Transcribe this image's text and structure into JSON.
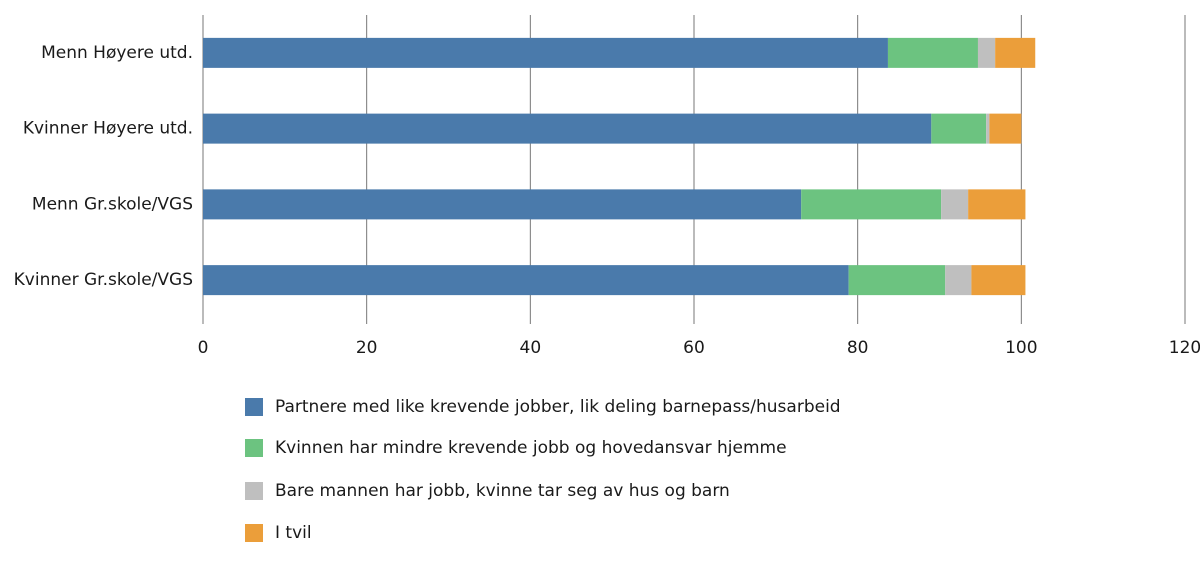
{
  "chart_data": {
    "type": "stacked-barh",
    "categories": [
      "Menn Høyere utd.",
      "Kvinner Høyere utd.",
      "Menn Gr.skole/VGS",
      "Kvinner Gr.skole/VGS"
    ],
    "series": [
      {
        "name": "Partnere med like krevende jobber, lik deling barnepass/husarbeid",
        "color": "#4a7aab",
        "values": [
          83.7,
          89.0,
          73.1,
          78.9
        ]
      },
      {
        "name": "Kvinnen har mindre krevende jobb og hovedansvar hjemme",
        "color": "#6cc380",
        "values": [
          11.0,
          6.7,
          17.1,
          11.8
        ]
      },
      {
        "name": "Bare mannen har jobb, kvinne tar seg av hus og barn",
        "color": "#bfbfbf",
        "values": [
          2.1,
          0.4,
          3.3,
          3.2
        ]
      },
      {
        "name": "I tvil",
        "color": "#eb9e3a",
        "values": [
          4.9,
          3.9,
          7.0,
          6.6
        ]
      }
    ],
    "xlim": [
      0,
      120
    ],
    "xticks": [
      0,
      20,
      40,
      60,
      80,
      100,
      120
    ],
    "grid": true
  }
}
